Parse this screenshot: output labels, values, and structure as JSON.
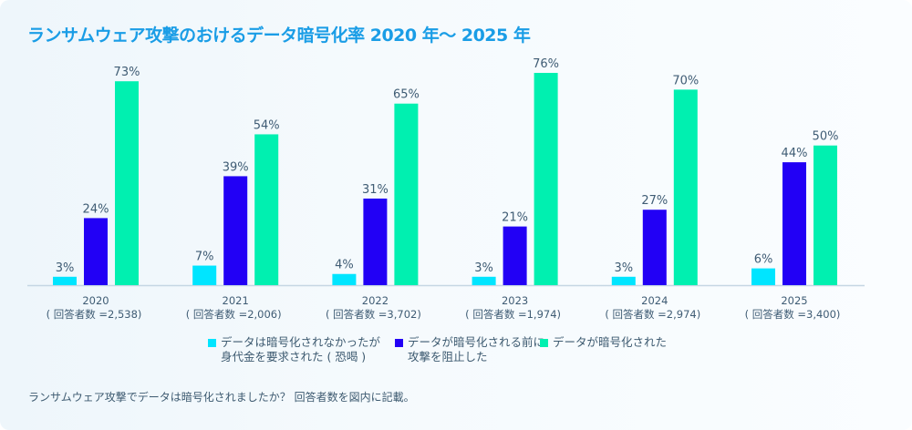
{
  "chart_data": {
    "type": "bar",
    "title": "ランサムウェア攻撃のおけるデータ暗号化率 2020 年～ 2025 年",
    "categories": [
      "2020",
      "2021",
      "2022",
      "2023",
      "2024",
      "2025"
    ],
    "category_sublabels": [
      "( 回答者数 =2,538)",
      "( 回答者数 =2,006)",
      "( 回答者数 =3,702)",
      "( 回答者数 =1,974)",
      "( 回答者数 =2,974)",
      "( 回答者数 =3,400)"
    ],
    "series": [
      {
        "name": "データは暗号化されなかったが身代金を要求された ( 恐喝 )",
        "legend_lines": [
          "データは暗号化されなかったが",
          "身代金を要求された ( 恐喝 )"
        ],
        "color": "#00e5ff",
        "values": [
          3,
          7,
          4,
          3,
          3,
          6
        ]
      },
      {
        "name": "データが暗号化される前に攻撃を阻止した",
        "legend_lines": [
          "データが暗号化される前に",
          "攻撃を阻止した"
        ],
        "color": "#2200f5",
        "values": [
          24,
          39,
          31,
          21,
          27,
          44
        ]
      },
      {
        "name": "データが暗号化された",
        "legend_lines": [
          "データが暗号化された"
        ],
        "color": "#00f0b0",
        "values": [
          73,
          54,
          65,
          76,
          70,
          50
        ]
      }
    ],
    "value_suffix": "%",
    "xlabel": "",
    "ylabel": "",
    "ylim": [
      0,
      76
    ],
    "grid": false,
    "legend_position": "bottom"
  },
  "footnote": "ランサムウェア攻撃でデータは暗号化されましたか？ 回答者数を図内に記載。",
  "colors": {
    "title": "#1a9de6",
    "text": "#3f5c74",
    "axis": "#c5d6e3"
  }
}
